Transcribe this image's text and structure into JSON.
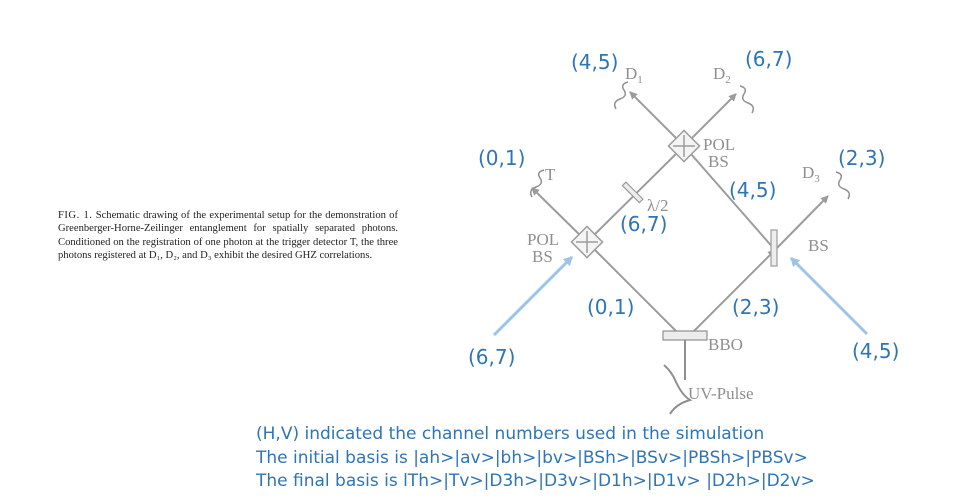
{
  "caption": {
    "label": "FIG. 1.",
    "text": "Schematic drawing of the experimental setup for the demonstration of Greenberger-Horne-Zeilinger entanglement for spatially separated photons. Conditioned on the registration of one photon at the trigger detector T, the three photons registered at D₁, D₂, and D₃ exhibit the desired GHZ correlations."
  },
  "diagram_labels": {
    "pol_bs_left_1": "POL",
    "pol_bs_left_2": "BS",
    "pol_bs_top_1": "POL",
    "pol_bs_top_2": "BS",
    "bs_right": "BS",
    "bbo": "BBO",
    "uv_pulse": "UV-Pulse",
    "trigger": "T",
    "d1": "D",
    "d1_sub": "1",
    "d2": "D",
    "d2_sub": "2",
    "d3": "D",
    "d3_sub": "3",
    "waveplate": "λ/2"
  },
  "annotations": {
    "t_channels": "(0,1)",
    "d1_channels": "(4,5)",
    "d2_channels": "(6,7)",
    "d3_channels": "(2,3)",
    "path_a": "(0,1)",
    "path_b": "(2,3)",
    "waveplate_path": "(6,7)",
    "right_arm": "(4,5)",
    "left_input": "(6,7)",
    "right_input": "(4,5)"
  },
  "notes": [
    "(H,V) indicated the channel numbers used in the simulation",
    "The initial basis is |ah>|av>|bh>|bv>|BSh>|BSv>|PBSh>|PBSv>",
    "The final basis is lTh>|Tv>|D3h>|D3v>|D1h>|D1v> |D2h>|D2v>"
  ],
  "colors": {
    "beam": "#9c9c9c",
    "annotation": "#2e75b6",
    "input_arrow": "#9dc3e6"
  }
}
